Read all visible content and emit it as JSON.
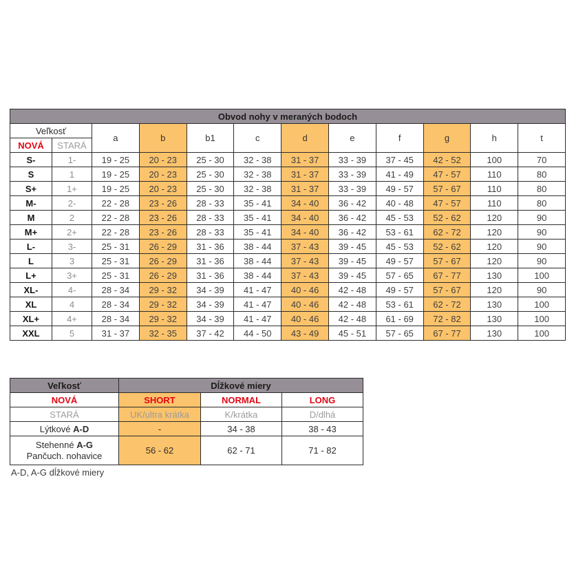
{
  "colors": {
    "header_bg": "#978F97",
    "highlight_bg": "#FBC36B",
    "red": "#E30613",
    "gray_text": "#9B9B9B",
    "cell_text": "#3F3F3F",
    "border": "#2B2B2B"
  },
  "main_table": {
    "title": "Obvod nohy v meraných bodoch",
    "size_header": "Veľkosť",
    "new_label": "NOVÁ",
    "old_label": "STARÁ",
    "measure_columns": [
      "a",
      "b",
      "b1",
      "c",
      "d",
      "e",
      "f",
      "g",
      "h",
      "t"
    ],
    "highlighted_columns": [
      "b",
      "d",
      "g"
    ],
    "rows": [
      {
        "new": "S-",
        "old": "1-",
        "values": [
          "19 - 25",
          "20 - 23",
          "25 - 30",
          "32 - 38",
          "31 - 37",
          "33 - 39",
          "37 - 45",
          "42 - 52",
          "100",
          "70"
        ]
      },
      {
        "new": "S",
        "old": "1",
        "values": [
          "19 - 25",
          "20 - 23",
          "25 - 30",
          "32 - 38",
          "31 - 37",
          "33 - 39",
          "41 - 49",
          "47 - 57",
          "110",
          "80"
        ]
      },
      {
        "new": "S+",
        "old": "1+",
        "values": [
          "19 - 25",
          "20 - 23",
          "25 - 30",
          "32 - 38",
          "31 - 37",
          "33 - 39",
          "49 - 57",
          "57 - 67",
          "110",
          "80"
        ]
      },
      {
        "new": "M-",
        "old": "2-",
        "values": [
          "22 - 28",
          "23 - 26",
          "28 - 33",
          "35 - 41",
          "34 - 40",
          "36 - 42",
          "40 - 48",
          "47 - 57",
          "110",
          "80"
        ]
      },
      {
        "new": "M",
        "old": "2",
        "values": [
          "22 - 28",
          "23 - 26",
          "28 - 33",
          "35 - 41",
          "34 - 40",
          "36 - 42",
          "45 - 53",
          "52 - 62",
          "120",
          "90"
        ]
      },
      {
        "new": "M+",
        "old": "2+",
        "values": [
          "22 - 28",
          "23 - 26",
          "28 - 33",
          "35 - 41",
          "34 - 40",
          "36 - 42",
          "53 - 61",
          "62 - 72",
          "120",
          "90"
        ]
      },
      {
        "new": "L-",
        "old": "3-",
        "values": [
          "25 - 31",
          "26 - 29",
          "31 - 36",
          "38 - 44",
          "37 - 43",
          "39 - 45",
          "45 - 53",
          "52 - 62",
          "120",
          "90"
        ]
      },
      {
        "new": "L",
        "old": "3",
        "values": [
          "25 - 31",
          "26 - 29",
          "31 - 36",
          "38 - 44",
          "37 - 43",
          "39 - 45",
          "49 - 57",
          "57 - 67",
          "120",
          "90"
        ]
      },
      {
        "new": "L+",
        "old": "3+",
        "values": [
          "25 - 31",
          "26 - 29",
          "31 - 36",
          "38 - 44",
          "37 - 43",
          "39 - 45",
          "57 - 65",
          "67 - 77",
          "130",
          "100"
        ]
      },
      {
        "new": "XL-",
        "old": "4-",
        "values": [
          "28 - 34",
          "29 - 32",
          "34 - 39",
          "41 - 47",
          "40 - 46",
          "42 - 48",
          "49 - 57",
          "57 - 67",
          "120",
          "90"
        ]
      },
      {
        "new": "XL",
        "old": "4",
        "values": [
          "28 - 34",
          "29 - 32",
          "34 - 39",
          "41 - 47",
          "40 - 46",
          "42 - 48",
          "53 - 61",
          "62 - 72",
          "130",
          "100"
        ]
      },
      {
        "new": "XL+",
        "old": "4+",
        "values": [
          "28 - 34",
          "29 - 32",
          "34 - 39",
          "41 - 47",
          "40 - 46",
          "42 - 48",
          "61 - 69",
          "72 - 82",
          "130",
          "100"
        ]
      },
      {
        "new": "XXL",
        "old": "5",
        "values": [
          "31 - 37",
          "32 - 35",
          "37 - 42",
          "44 - 50",
          "43 - 49",
          "45 - 51",
          "57 - 65",
          "67 - 77",
          "130",
          "100"
        ]
      }
    ]
  },
  "length_table": {
    "size_header": "Veľkosť",
    "title": "Dĺžkové miery",
    "new_row": {
      "label": "NOVÁ",
      "short": "SHORT",
      "normal": "NORMAL",
      "long": "LONG"
    },
    "old_row": {
      "label": "STARÁ",
      "short": "UK/ultra krátka",
      "normal": "K/krátka",
      "long": "D/dlhá"
    },
    "calf_row": {
      "label_prefix": "Lýtkové",
      "label_bold": "A-D",
      "short": "-",
      "normal": "34 - 38",
      "long": "38 - 43"
    },
    "thigh_row": {
      "line1_prefix": "Stehenné",
      "line1_bold": "A-G",
      "line2": "Pančuch. nohavice",
      "short": "56 - 62",
      "normal": "62 - 71",
      "long": "71 - 82"
    }
  },
  "footnote": "A-D, A-G dĺžkové miery"
}
